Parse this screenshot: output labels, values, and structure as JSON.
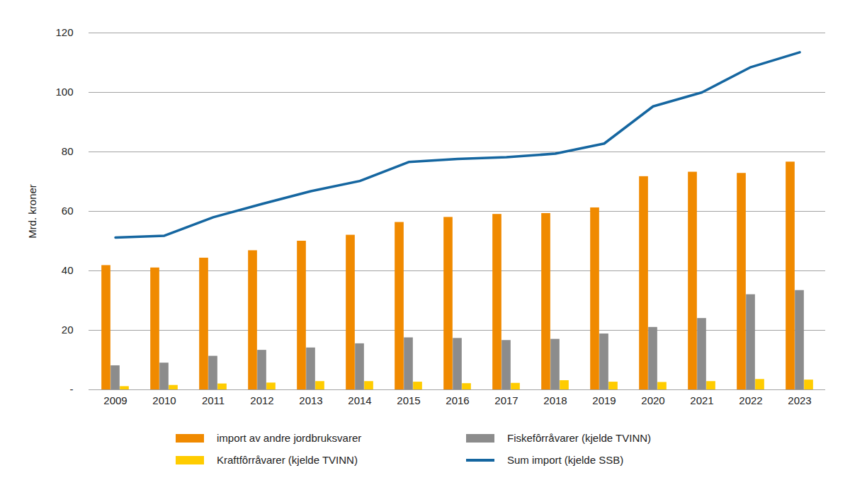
{
  "chart_data": {
    "type": "bar",
    "y_label": "Mrd. kroner",
    "categories": [
      "2009",
      "2010",
      "2011",
      "2012",
      "2013",
      "2014",
      "2015",
      "2016",
      "2017",
      "2018",
      "2019",
      "2020",
      "2021",
      "2022",
      "2023"
    ],
    "series": [
      {
        "name": "import av andre jordbruksvarer",
        "type": "bar",
        "color": "#f08a00",
        "values": [
          41.8,
          41.0,
          44.3,
          46.8,
          50.0,
          52.0,
          56.3,
          58.0,
          59.0,
          59.3,
          61.2,
          71.7,
          73.2,
          72.8,
          76.6
        ]
      },
      {
        "name": "Fiskefôrråvarer (kjelde TVINN)",
        "type": "bar",
        "color": "#8c8c8c",
        "values": [
          8.1,
          9.0,
          11.3,
          13.3,
          14.1,
          15.5,
          17.5,
          17.3,
          16.6,
          17.0,
          18.8,
          21.0,
          24.0,
          32.0,
          33.4
        ]
      },
      {
        "name": "Kraftfôrråvarer (kjelde TVINN)",
        "type": "bar",
        "color": "#ffcc00",
        "values": [
          1.1,
          1.5,
          2.0,
          2.3,
          2.8,
          2.8,
          2.6,
          2.1,
          2.2,
          3.1,
          2.6,
          2.5,
          2.8,
          3.5,
          3.3
        ]
      },
      {
        "name": "Sum import (kjelde SSB)",
        "type": "line",
        "color": "#1566a0",
        "values": [
          51.2,
          51.8,
          58.0,
          62.5,
          66.8,
          70.2,
          76.6,
          77.6,
          78.2,
          79.4,
          82.8,
          95.3,
          100.0,
          108.5,
          113.5
        ]
      }
    ],
    "ylim": [
      0,
      120
    ],
    "yticks": [
      {
        "value": 0,
        "label": "-"
      },
      20,
      40,
      60,
      80,
      100,
      120
    ],
    "grid": true,
    "legend": "bottom"
  }
}
